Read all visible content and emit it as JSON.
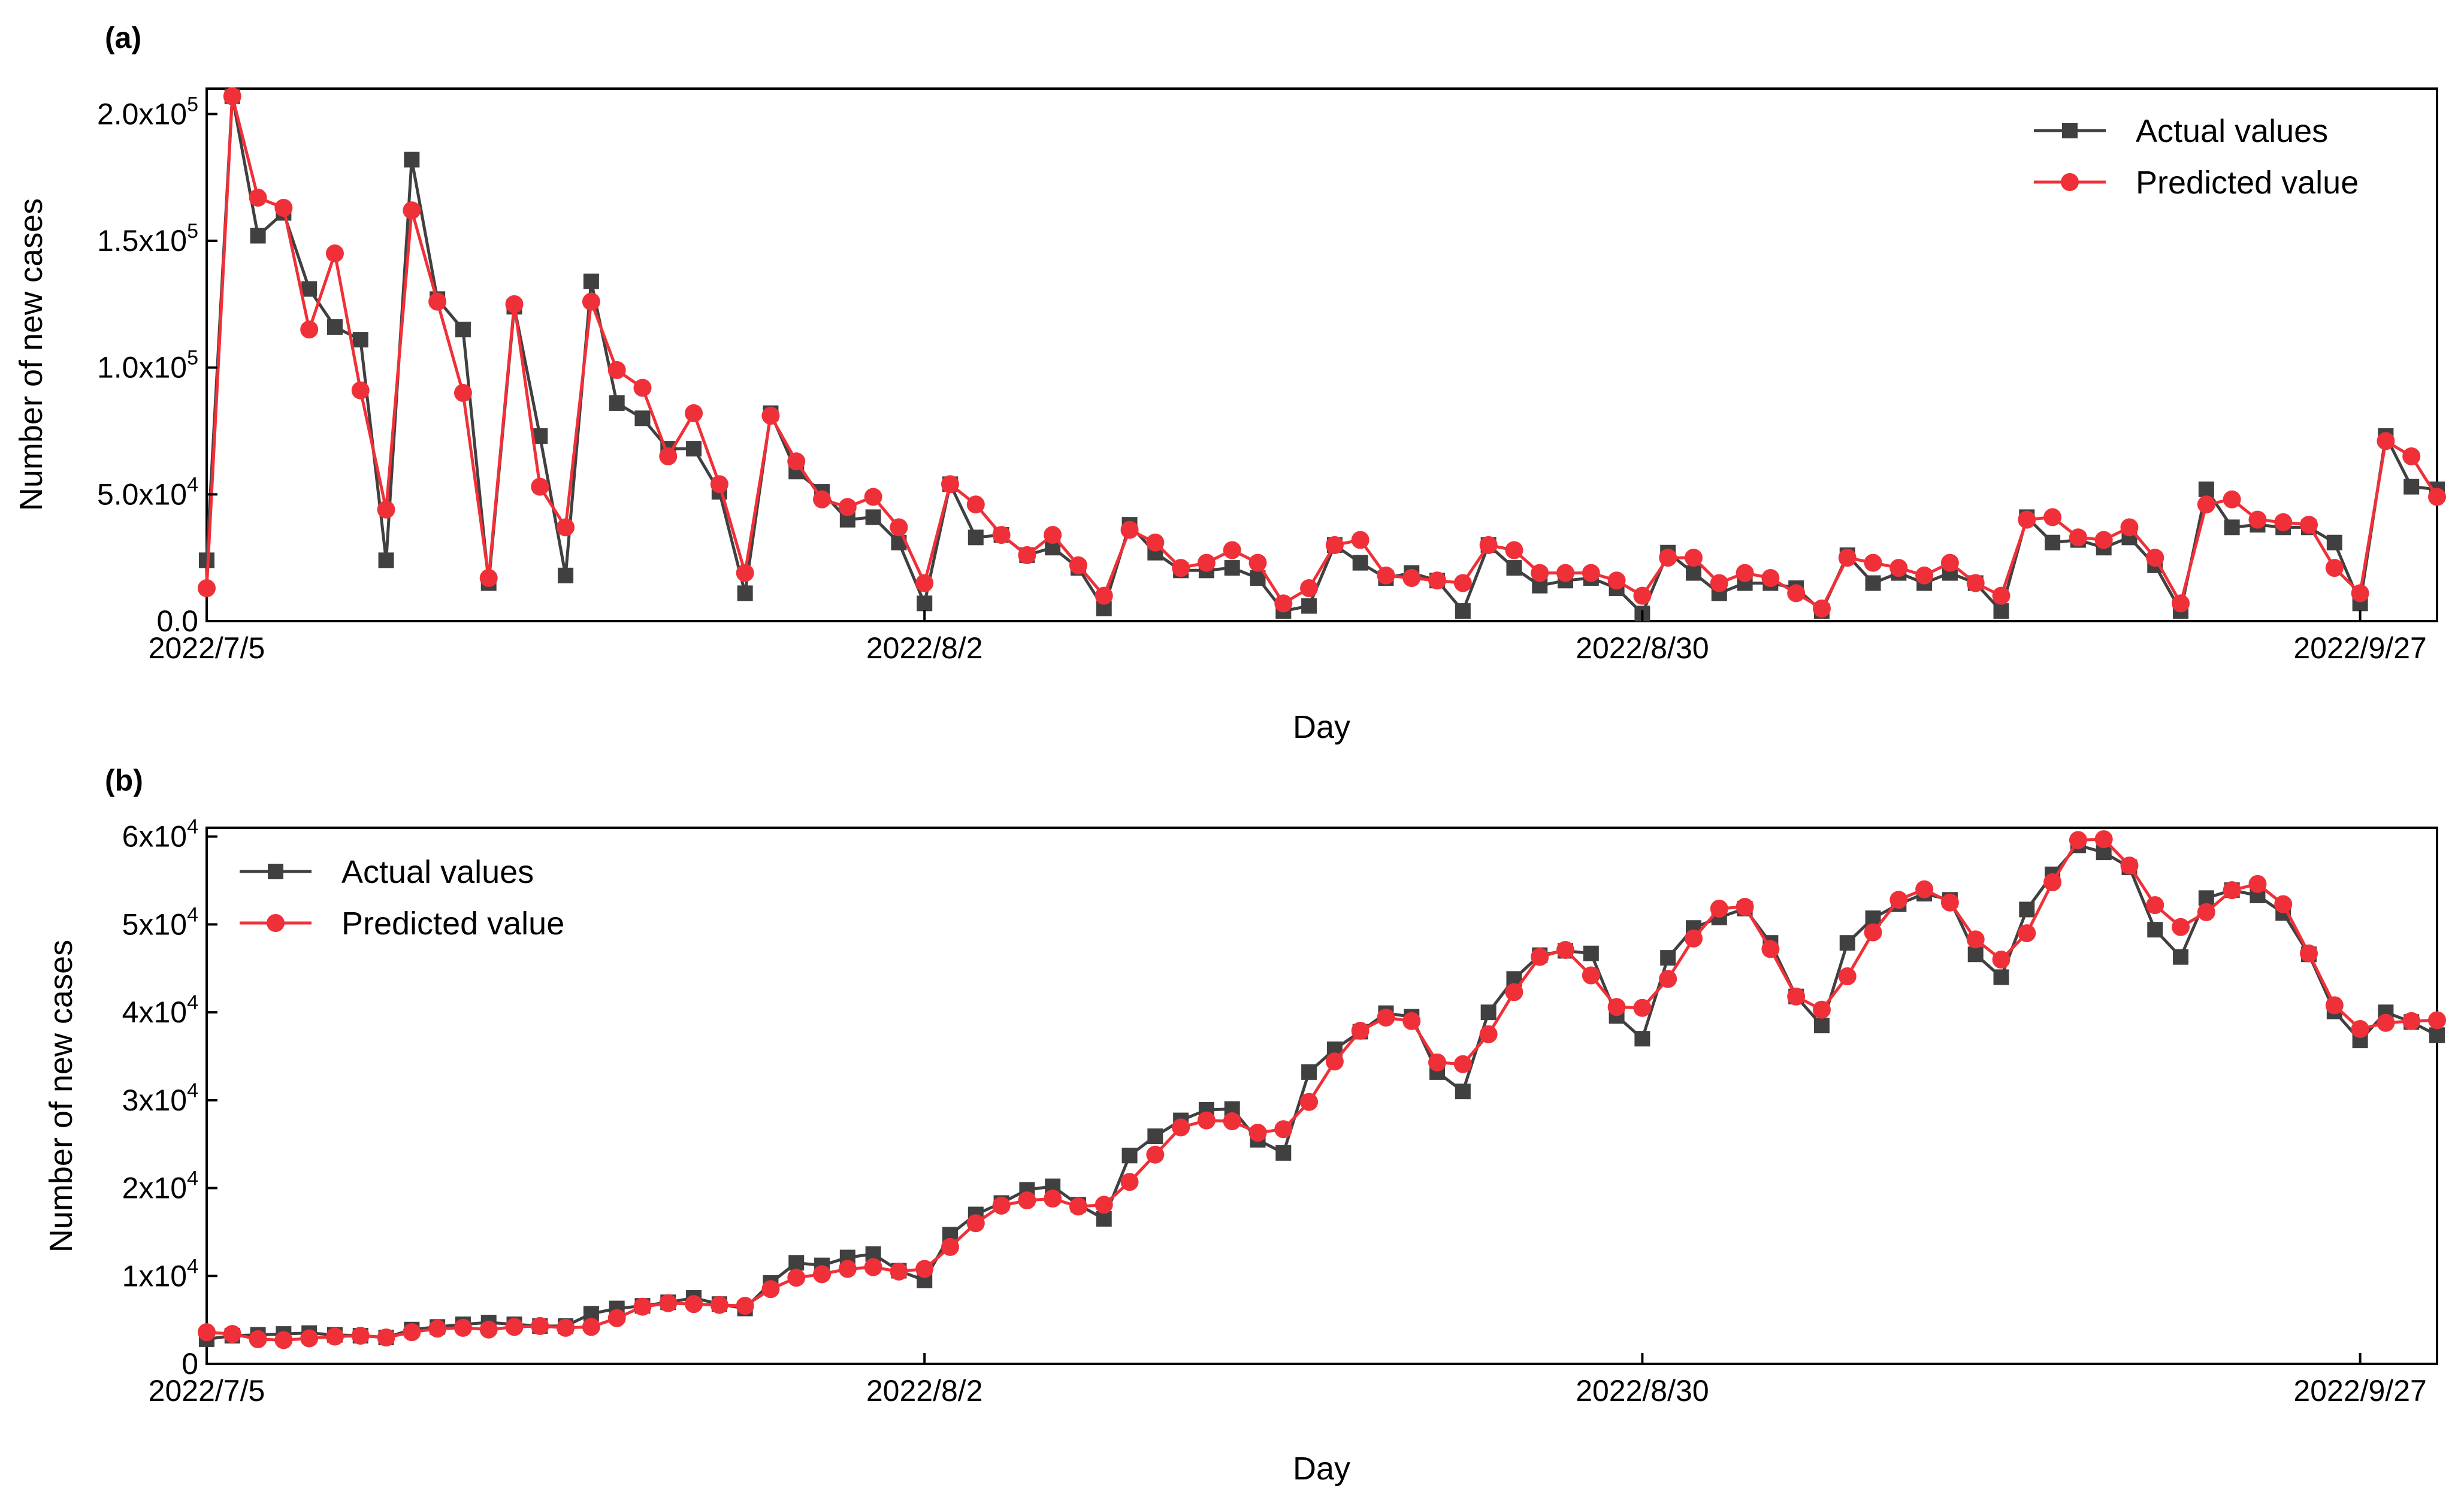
{
  "chart_data": [
    {
      "panel": "(a)",
      "type": "line",
      "xlabel": "Day",
      "ylabel": "Number of new cases",
      "ylim": [
        0,
        210000
      ],
      "xlim": [
        0,
        87
      ],
      "x_tick_labels": [
        "2022/7/5",
        "2022/8/2",
        "2022/8/30",
        "2022/9/27"
      ],
      "x_tick_positions": [
        0,
        28,
        56,
        84
      ],
      "y_ticks": [
        {
          "value": 0,
          "mant": "0.0",
          "exp": ""
        },
        {
          "value": 50000,
          "mant": "5.0x10",
          "exp": "4"
        },
        {
          "value": 100000,
          "mant": "1.0x10",
          "exp": "5"
        },
        {
          "value": 150000,
          "mant": "1.5x10",
          "exp": "5"
        },
        {
          "value": 200000,
          "mant": "2.0x10",
          "exp": "5"
        }
      ],
      "legend_position": "top-right",
      "series": [
        {
          "name": "Actual values",
          "color": "#404040",
          "marker": "square",
          "values": [
            24000,
            207000,
            152000,
            161000,
            131000,
            116000,
            111000,
            24000,
            182000,
            127000,
            115000,
            15000,
            124000,
            73000,
            18000,
            134000,
            86000,
            80000,
            68000,
            68000,
            51000,
            11000,
            82000,
            59000,
            51000,
            40000,
            41000,
            31000,
            7000,
            54000,
            33000,
            34000,
            26000,
            29000,
            21000,
            5000,
            38000,
            27000,
            20000,
            20000,
            21000,
            17000,
            4000,
            6000,
            30000,
            23000,
            17000,
            19000,
            16000,
            4000,
            30000,
            21000,
            14000,
            16000,
            17000,
            13000,
            3000,
            27000,
            19000,
            11000,
            15000,
            15000,
            13000,
            4000,
            26000,
            15000,
            19000,
            15000,
            19000,
            15000,
            4000,
            41000,
            31000,
            32000,
            29000,
            33000,
            22000,
            4000,
            52000,
            37000,
            38000,
            37000,
            37000,
            31000,
            7000,
            73000,
            53000,
            52000
          ]
        },
        {
          "name": "Predicted value",
          "color": "#f03038",
          "marker": "circle",
          "values": [
            13000,
            207000,
            167000,
            163000,
            115000,
            145000,
            91000,
            44000,
            162000,
            126000,
            90000,
            17000,
            125000,
            53000,
            37000,
            126000,
            99000,
            92000,
            65000,
            82000,
            54000,
            19000,
            81000,
            63000,
            48000,
            45000,
            49000,
            37000,
            15000,
            54000,
            46000,
            34000,
            26000,
            34000,
            22000,
            10000,
            36000,
            31000,
            21000,
            23000,
            28000,
            23000,
            7000,
            13000,
            30000,
            32000,
            18000,
            17000,
            16000,
            15000,
            30000,
            28000,
            19000,
            19000,
            19000,
            16000,
            10000,
            25000,
            25000,
            15000,
            19000,
            17000,
            11000,
            5000,
            25000,
            23000,
            21000,
            18000,
            23000,
            15000,
            10000,
            40000,
            41000,
            33000,
            32000,
            37000,
            25000,
            7000,
            46000,
            48000,
            40000,
            39000,
            38000,
            21000,
            11000,
            71000,
            65000,
            49000
          ]
        }
      ]
    },
    {
      "panel": "(b)",
      "type": "line",
      "xlabel": "Day",
      "ylabel": "Number of new cases",
      "ylim": [
        0,
        61000
      ],
      "xlim": [
        0,
        87
      ],
      "x_tick_labels": [
        "2022/7/5",
        "2022/8/2",
        "2022/8/30",
        "2022/9/27"
      ],
      "x_tick_positions": [
        0,
        28,
        56,
        84
      ],
      "y_ticks": [
        {
          "value": 0,
          "mant": "0",
          "exp": ""
        },
        {
          "value": 10000,
          "mant": "1x10",
          "exp": "4"
        },
        {
          "value": 20000,
          "mant": "2x10",
          "exp": "4"
        },
        {
          "value": 30000,
          "mant": "3x10",
          "exp": "4"
        },
        {
          "value": 40000,
          "mant": "4x10",
          "exp": "4"
        },
        {
          "value": 50000,
          "mant": "5x10",
          "exp": "4"
        },
        {
          "value": 60000,
          "mant": "6x10",
          "exp": "4"
        }
      ],
      "legend_position": "top-left",
      "series": [
        {
          "name": "Actual values",
          "color": "#404040",
          "marker": "square",
          "values": [
            2800,
            3200,
            3300,
            3400,
            3500,
            3300,
            3200,
            3000,
            3900,
            4200,
            4500,
            4700,
            4500,
            4300,
            4300,
            5700,
            6300,
            6600,
            7000,
            7500,
            6800,
            6300,
            9200,
            11500,
            11200,
            12100,
            12500,
            10600,
            9500,
            14700,
            17000,
            18300,
            19800,
            20200,
            18100,
            16500,
            23700,
            25900,
            27700,
            28900,
            29000,
            25500,
            24000,
            33200,
            35800,
            37800,
            39900,
            39500,
            33200,
            31000,
            40000,
            43800,
            46500,
            47000,
            46700,
            39600,
            37000,
            46200,
            49600,
            50800,
            51800,
            47900,
            41800,
            38500,
            47900,
            50700,
            52300,
            53500,
            52800,
            46600,
            44000,
            51700,
            55700,
            59000,
            58200,
            56500,
            49400,
            46300,
            53000,
            53900,
            53300,
            51300,
            46600,
            40100,
            36800,
            40000,
            38900,
            37400
          ]
        },
        {
          "name": "Predicted value",
          "color": "#f03038",
          "marker": "circle",
          "values": [
            3600,
            3400,
            2800,
            2700,
            2900,
            3100,
            3200,
            3000,
            3600,
            4000,
            4100,
            3900,
            4200,
            4300,
            4100,
            4200,
            5200,
            6500,
            6900,
            6800,
            6700,
            6600,
            8500,
            9800,
            10200,
            10800,
            11000,
            10500,
            10800,
            13300,
            16000,
            18000,
            18600,
            18800,
            17900,
            18100,
            20700,
            23800,
            26900,
            27700,
            27600,
            26300,
            26700,
            29800,
            34400,
            37900,
            39400,
            39000,
            34300,
            34100,
            37500,
            42300,
            46300,
            47100,
            44200,
            40600,
            40500,
            43800,
            48400,
            51800,
            52000,
            47200,
            41800,
            40300,
            44100,
            49100,
            52800,
            54000,
            52500,
            48300,
            46000,
            49000,
            54800,
            59600,
            59700,
            56700,
            52200,
            49700,
            51400,
            53900,
            54600,
            52300,
            46700,
            40800,
            38100,
            38800,
            39000,
            39100
          ]
        }
      ]
    }
  ]
}
